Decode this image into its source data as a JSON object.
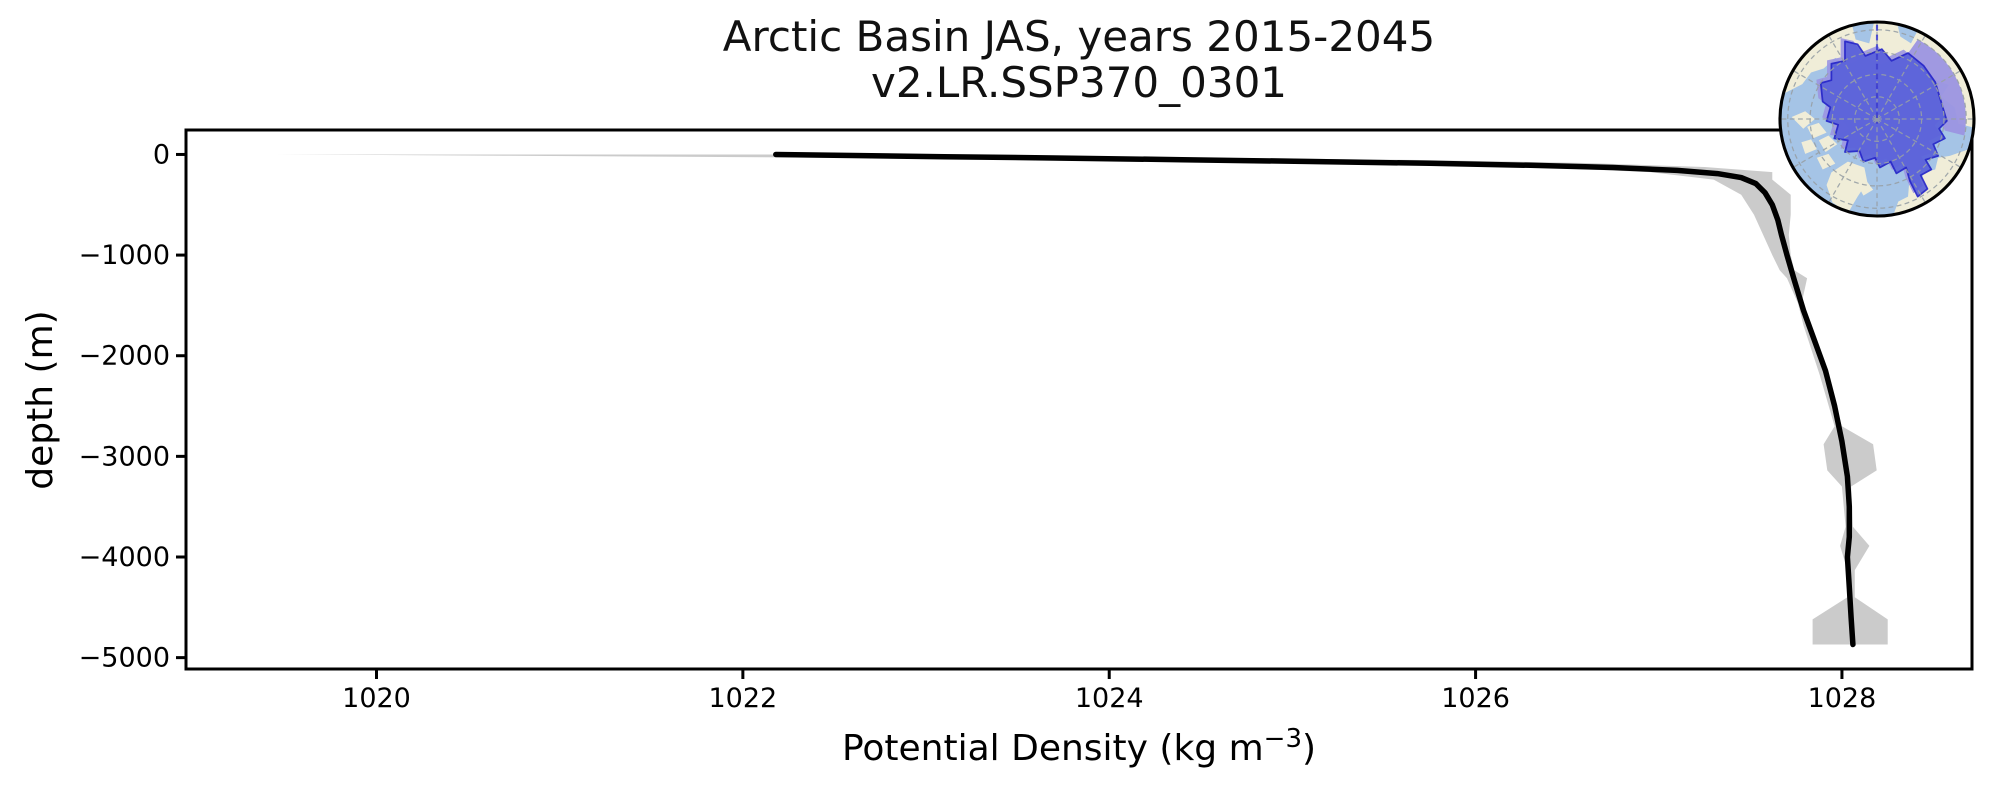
{
  "page": {
    "background": "#ffffff"
  },
  "title": {
    "line1": "Arctic Basin JAS, years 2015-2045",
    "line2": "v2.LR.SSP370_0301"
  },
  "chart_data": {
    "type": "line",
    "title": "Arctic Basin JAS, years 2015-2045",
    "subtitle": "v2.LR.SSP370_0301",
    "xlabel_parts": {
      "main": "Potential Density (kg m",
      "sup": "−3",
      "end": ")"
    },
    "xlabel_plain": "Potential Density (kg m⁻³)",
    "ylabel": "depth (m)",
    "xlim": [
      1018.96,
      1028.71
    ],
    "ylim": [
      -5113,
      243
    ],
    "x_ticks": [
      1020,
      1022,
      1024,
      1026,
      1028
    ],
    "x_tick_labels": [
      "1020",
      "1022",
      "1024",
      "1026",
      "1028"
    ],
    "y_ticks": [
      0,
      -1000,
      -2000,
      -3000,
      -4000,
      -5000
    ],
    "y_tick_labels": [
      "0",
      "−1000",
      "−2000",
      "−3000",
      "−4000",
      "−5000"
    ],
    "grid": false,
    "legend": "none",
    "series": [
      {
        "name": "ensemble-mean potential density profile",
        "color": "#000000",
        "linewidth": 5.5,
        "x": [
          1022.18,
          1022.6,
          1023.1,
          1023.7,
          1024.4,
          1025.1,
          1025.75,
          1026.3,
          1026.75,
          1027.1,
          1027.32,
          1027.45,
          1027.53,
          1027.58,
          1027.62,
          1027.65,
          1027.67,
          1027.7,
          1027.74,
          1027.79,
          1027.85,
          1027.91,
          1027.96,
          1028.0,
          1028.03,
          1028.04,
          1028.04,
          1028.03,
          1028.04,
          1028.05,
          1028.06
        ],
        "y": [
          0,
          -10,
          -22,
          -35,
          -52,
          -70,
          -88,
          -108,
          -130,
          -158,
          -190,
          -230,
          -290,
          -380,
          -500,
          -650,
          -800,
          -1000,
          -1250,
          -1550,
          -1850,
          -2150,
          -2500,
          -2850,
          -3200,
          -3500,
          -3800,
          -4000,
          -4300,
          -4600,
          -4870
        ]
      }
    ],
    "envelope": {
      "name": "min-max spread across years 2015-2045",
      "color": "#cbcbcb",
      "depth": [
        0,
        -12,
        -30,
        -55,
        -85,
        -125,
        -175,
        -250,
        -400,
        -600,
        -800,
        -1000,
        -1150,
        -1230,
        -1480,
        -1700,
        -2200,
        -2700,
        -2880,
        -3140,
        -3300,
        -3700,
        -3890,
        -4130,
        -4400,
        -4620,
        -4870
      ],
      "sigma_min": [
        1019.45,
        1020.7,
        1022.3,
        1023.9,
        1025.2,
        1026.3,
        1026.95,
        1027.3,
        1027.45,
        1027.52,
        1027.57,
        1027.62,
        1027.66,
        1027.7,
        1027.76,
        1027.79,
        1027.88,
        1027.96,
        1027.9,
        1027.92,
        1028.0,
        1028.02,
        1027.99,
        1028.03,
        1028.03,
        1027.84,
        1027.84
      ],
      "sigma_max": [
        1022.35,
        1023.2,
        1024.4,
        1025.7,
        1026.6,
        1027.25,
        1027.62,
        1027.62,
        1027.72,
        1027.72,
        1027.71,
        1027.72,
        1027.74,
        1027.81,
        1027.78,
        1027.83,
        1027.92,
        1028.0,
        1028.17,
        1028.19,
        1028.05,
        1028.06,
        1028.15,
        1028.07,
        1028.07,
        1028.25,
        1028.25
      ]
    },
    "axis_color": "#000000",
    "spine_width": 3,
    "tick_length": 10
  },
  "inset_map": {
    "description": "polar stereographic map with Arctic Basin region highlighted",
    "colors": {
      "land": "#f0edd8",
      "ocean": "#a5c4e6",
      "region_fill": "#5a61d9",
      "region_fringe": "#9b95e2",
      "region_outline": "#2424c8",
      "graticule": "#98a0a6",
      "meridian_dash": "#3b3bd0",
      "border": "#000000"
    }
  }
}
